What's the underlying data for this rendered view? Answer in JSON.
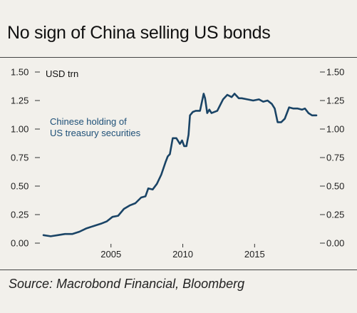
{
  "title": "No sign of China selling US bonds",
  "source": "Source: Macrobond Financial, Bloomberg",
  "colors": {
    "series": "#1a4466",
    "annotation": "#1d4f77",
    "background": "#f2f0eb"
  },
  "chart_data": {
    "type": "line",
    "unit_label": "USD trn",
    "annotation": [
      "Chinese holding of",
      "US treasury securities"
    ],
    "xlim": [
      2000.3,
      2019.4
    ],
    "ylim": [
      0,
      1.5
    ],
    "x_ticks": [
      2005,
      2010,
      2015
    ],
    "x_tick_labels": [
      "2005",
      "2010",
      "2015"
    ],
    "y_ticks": [
      0,
      0.25,
      0.5,
      0.75,
      1.0,
      1.25,
      1.5
    ],
    "y_tick_labels_left": [
      "0.00",
      "0.25",
      "0.50",
      "0.75",
      "1.00",
      "1.25",
      "1.50"
    ],
    "y_tick_labels_right": [
      "0.00",
      "0.25",
      "0.50",
      "0.75",
      "1.00",
      "1.25",
      "1.50"
    ],
    "grid": false,
    "series": [
      {
        "x": [
          2000.3,
          2000.8,
          2001.3,
          2001.8,
          2002.3,
          2002.8,
          2003.3,
          2003.8,
          2004.3,
          2004.7,
          2005.1,
          2005.5,
          2005.9,
          2006.3,
          2006.7,
          2007.1,
          2007.4,
          2007.6,
          2007.9,
          2008.2,
          2008.5,
          2008.8,
          2008.95,
          2009.1,
          2009.3,
          2009.55,
          2009.8,
          2009.95,
          2010.1,
          2010.25,
          2010.4,
          2010.5,
          2010.7,
          2010.9,
          2011.2,
          2011.45,
          2011.55,
          2011.7,
          2011.85,
          2012.0,
          2012.4,
          2012.8,
          2013.1,
          2013.4,
          2013.6,
          2013.9,
          2014.1,
          2014.5,
          2014.9,
          2015.3,
          2015.6,
          2015.9,
          2016.2,
          2016.4,
          2016.6,
          2016.85,
          2017.1,
          2017.4,
          2017.7,
          2018.0,
          2018.3,
          2018.5,
          2018.75,
          2019.0,
          2019.3
        ],
        "y": [
          0.07,
          0.06,
          0.07,
          0.08,
          0.08,
          0.1,
          0.13,
          0.15,
          0.17,
          0.19,
          0.23,
          0.24,
          0.3,
          0.33,
          0.35,
          0.4,
          0.41,
          0.48,
          0.47,
          0.52,
          0.6,
          0.71,
          0.76,
          0.78,
          0.92,
          0.92,
          0.87,
          0.9,
          0.85,
          0.85,
          0.95,
          1.12,
          1.15,
          1.16,
          1.16,
          1.31,
          1.27,
          1.14,
          1.17,
          1.14,
          1.16,
          1.26,
          1.3,
          1.28,
          1.31,
          1.27,
          1.27,
          1.26,
          1.25,
          1.26,
          1.24,
          1.25,
          1.22,
          1.18,
          1.06,
          1.06,
          1.09,
          1.19,
          1.18,
          1.18,
          1.17,
          1.18,
          1.14,
          1.12,
          1.12
        ]
      }
    ]
  }
}
